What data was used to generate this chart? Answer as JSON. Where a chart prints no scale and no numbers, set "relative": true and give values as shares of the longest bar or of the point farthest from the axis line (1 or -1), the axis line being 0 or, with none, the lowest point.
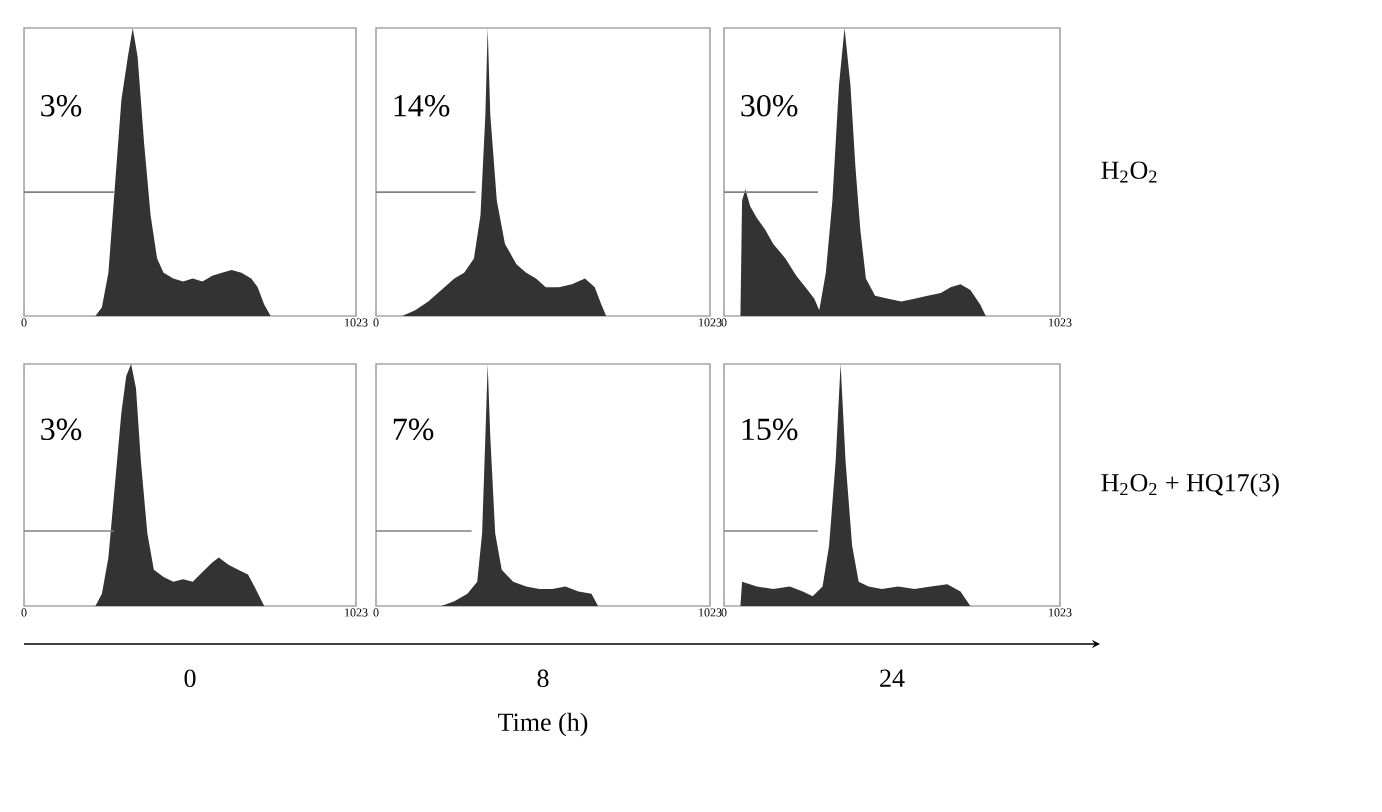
{
  "chart_data": [
    {
      "type": "area",
      "relative": true,
      "xlim": [
        0,
        1023
      ],
      "xticks": [
        0,
        1023
      ],
      "annotations": [
        "3%"
      ],
      "series": [
        {
          "type": "area",
          "color": "#333333",
          "x": [
            220,
            240,
            260,
            280,
            300,
            320,
            335,
            350,
            370,
            390,
            410,
            430,
            460,
            490,
            520,
            550,
            580,
            610,
            640,
            670,
            700,
            720,
            740,
            760
          ],
          "values": [
            0,
            0.03,
            0.15,
            0.45,
            0.75,
            0.9,
            1.0,
            0.9,
            0.6,
            0.35,
            0.2,
            0.15,
            0.13,
            0.12,
            0.13,
            0.12,
            0.14,
            0.15,
            0.16,
            0.15,
            0.13,
            0.1,
            0.04,
            0
          ]
        },
        {
          "type": "line",
          "color": "#808080",
          "x": [
            0,
            277
          ],
          "values": [
            0.43,
            0.43
          ]
        }
      ]
    },
    {
      "type": "area",
      "relative": true,
      "xlim": [
        0,
        1023
      ],
      "xticks": [
        0,
        1023
      ],
      "annotations": [
        "14%"
      ],
      "series": [
        {
          "type": "area",
          "color": "#333333",
          "x": [
            80,
            120,
            160,
            200,
            240,
            270,
            300,
            320,
            335,
            342,
            350,
            370,
            395,
            430,
            460,
            490,
            520,
            560,
            600,
            640,
            670,
            690,
            705
          ],
          "values": [
            0,
            0.02,
            0.05,
            0.09,
            0.13,
            0.15,
            0.2,
            0.35,
            0.7,
            1.0,
            0.7,
            0.4,
            0.25,
            0.18,
            0.15,
            0.13,
            0.1,
            0.1,
            0.11,
            0.13,
            0.1,
            0.04,
            0
          ]
        },
        {
          "type": "line",
          "color": "#808080",
          "x": [
            0,
            305
          ],
          "values": [
            0.43,
            0.43
          ]
        }
      ]
    },
    {
      "type": "area",
      "relative": true,
      "xlim": [
        0,
        1023
      ],
      "xticks": [
        0,
        1023
      ],
      "annotations": [
        "30%",
        "H$_{2}$O$_{2}$"
      ],
      "series": [
        {
          "type": "area",
          "color": "#333333",
          "x": [
            50,
            55,
            65,
            80,
            100,
            125,
            150,
            187,
            220,
            248,
            275,
            290,
            310,
            330,
            350,
            367,
            385,
            400,
            415,
            432,
            460,
            500,
            540,
            580,
            620,
            660,
            690,
            720,
            750,
            780,
            797
          ],
          "values": [
            0,
            0.4,
            0.44,
            0.38,
            0.34,
            0.3,
            0.25,
            0.2,
            0.14,
            0.1,
            0.06,
            0.02,
            0.15,
            0.4,
            0.8,
            1.0,
            0.8,
            0.52,
            0.3,
            0.13,
            0.07,
            0.06,
            0.05,
            0.06,
            0.07,
            0.08,
            0.1,
            0.11,
            0.09,
            0.04,
            0
          ]
        },
        {
          "type": "line",
          "color": "#808080",
          "x": [
            0,
            286
          ],
          "values": [
            0.43,
            0.43
          ]
        }
      ]
    },
    {
      "type": "area",
      "relative": true,
      "xlim": [
        0,
        1023
      ],
      "xticks": [
        0,
        1023
      ],
      "xlabel": "0",
      "annotations": [
        "3%"
      ],
      "series": [
        {
          "type": "area",
          "color": "#333333",
          "x": [
            220,
            240,
            260,
            280,
            300,
            315,
            330,
            345,
            360,
            380,
            400,
            430,
            460,
            490,
            520,
            550,
            580,
            600,
            630,
            660,
            690,
            710,
            740
          ],
          "values": [
            0,
            0.05,
            0.2,
            0.5,
            0.8,
            0.95,
            1.0,
            0.9,
            0.6,
            0.3,
            0.15,
            0.12,
            0.1,
            0.11,
            0.1,
            0.14,
            0.18,
            0.2,
            0.17,
            0.15,
            0.13,
            0.08,
            0
          ]
        },
        {
          "type": "line",
          "color": "#808080",
          "x": [
            0,
            277
          ],
          "values": [
            0.31,
            0.31
          ]
        }
      ]
    },
    {
      "type": "area",
      "relative": true,
      "xlim": [
        0,
        1023
      ],
      "xticks": [
        0,
        1023
      ],
      "xlabel": "8",
      "annotations": [
        "7%",
        "Time (h)"
      ],
      "series": [
        {
          "type": "area",
          "color": "#333333",
          "x": [
            200,
            240,
            280,
            310,
            325,
            335,
            342,
            350,
            365,
            385,
            420,
            460,
            500,
            540,
            580,
            620,
            660,
            680
          ],
          "values": [
            0,
            0.02,
            0.05,
            0.1,
            0.3,
            0.7,
            1.0,
            0.7,
            0.3,
            0.15,
            0.1,
            0.08,
            0.07,
            0.07,
            0.08,
            0.06,
            0.05,
            0
          ]
        },
        {
          "type": "line",
          "color": "#808080",
          "x": [
            0,
            293
          ],
          "values": [
            0.31,
            0.31
          ]
        }
      ]
    },
    {
      "type": "area",
      "relative": true,
      "xlim": [
        0,
        1023
      ],
      "xticks": [
        0,
        1023
      ],
      "xlabel": "24",
      "annotations": [
        "15%",
        "H$_{2}$O$_{2}$ + HQ17(3)"
      ],
      "series": [
        {
          "type": "area",
          "color": "#333333",
          "x": [
            50,
            55,
            100,
            150,
            200,
            240,
            270,
            300,
            320,
            340,
            355,
            370,
            390,
            410,
            440,
            480,
            530,
            580,
            630,
            680,
            720,
            750
          ],
          "values": [
            0,
            0.1,
            0.08,
            0.07,
            0.08,
            0.06,
            0.04,
            0.08,
            0.25,
            0.6,
            1.0,
            0.6,
            0.25,
            0.1,
            0.08,
            0.07,
            0.08,
            0.07,
            0.08,
            0.09,
            0.06,
            0
          ]
        },
        {
          "type": "line",
          "color": "#808080",
          "x": [
            0,
            286
          ],
          "values": [
            0.31,
            0.31
          ]
        }
      ]
    }
  ]
}
